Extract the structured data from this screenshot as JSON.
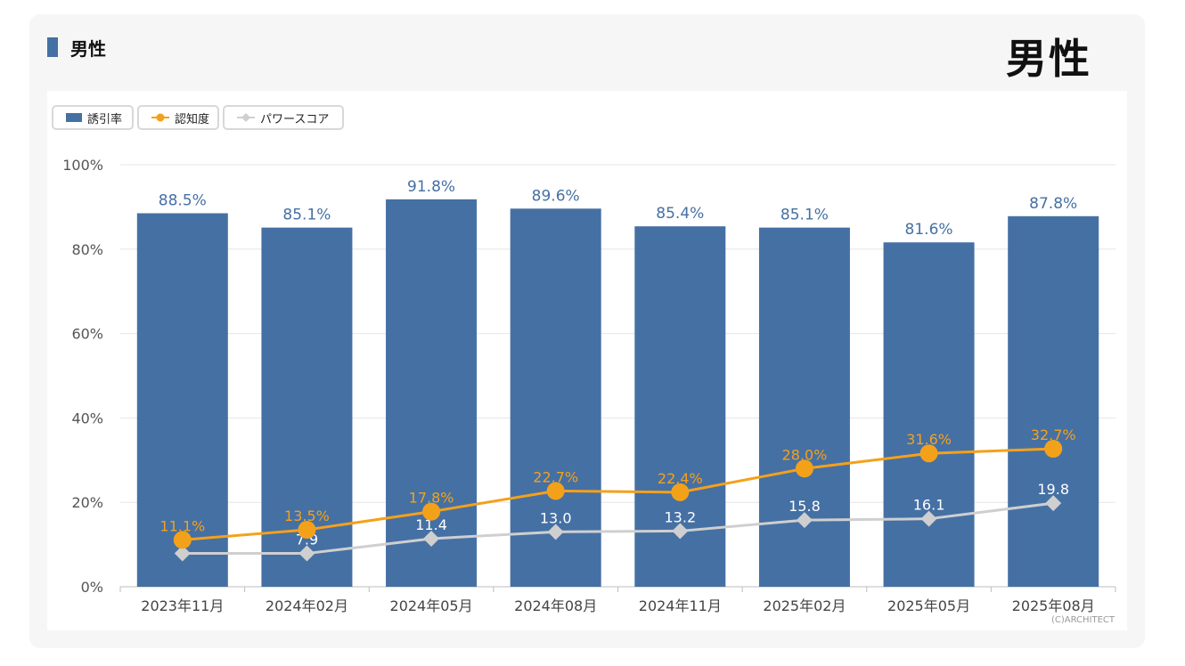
{
  "header": {
    "section_title": "男性",
    "big_title": "男性"
  },
  "legend": [
    {
      "label": "誘引率",
      "icon": "bar-swatch-icon"
    },
    {
      "label": "認知度",
      "icon": "circle-line-icon"
    },
    {
      "label": "パワースコア",
      "icon": "diamond-line-icon"
    }
  ],
  "credit": "(C)ARCHITECT",
  "colors": {
    "bar": "#4570a4",
    "awareness": "#f4a11a",
    "power": "#cfcfcf",
    "bar_label": "#4570a4",
    "awareness_label": "#f4a11a",
    "power_label": "#ffffff"
  },
  "chart_data": {
    "type": "bar",
    "categories": [
      "2023年11月",
      "2024年02月",
      "2024年05月",
      "2024年08月",
      "2024年11月",
      "2025年02月",
      "2025年05月",
      "2025年08月"
    ],
    "series": [
      {
        "name": "誘引率",
        "kind": "bar",
        "values": [
          88.5,
          85.1,
          91.8,
          89.6,
          85.4,
          85.1,
          81.6,
          87.8
        ],
        "labels": [
          "88.5%",
          "85.1%",
          "91.8%",
          "89.6%",
          "85.4%",
          "85.1%",
          "81.6%",
          "87.8%"
        ]
      },
      {
        "name": "認知度",
        "kind": "line",
        "values": [
          11.1,
          13.5,
          17.8,
          22.7,
          22.4,
          28.0,
          31.6,
          32.7
        ],
        "labels": [
          "11.1%",
          "13.5%",
          "17.8%",
          "22.7%",
          "22.4%",
          "28.0%",
          "31.6%",
          "32.7%"
        ]
      },
      {
        "name": "パワースコア",
        "kind": "line",
        "values": [
          7.9,
          7.9,
          11.4,
          13.0,
          13.2,
          15.8,
          16.1,
          19.8
        ],
        "labels": [
          "7.9",
          "7.9",
          "11.4",
          "13.0",
          "13.2",
          "15.8",
          "16.1",
          "19.8"
        ],
        "label_visible": [
          false,
          true,
          true,
          true,
          true,
          true,
          true,
          true
        ]
      }
    ],
    "ylim": [
      0,
      100
    ],
    "yticks": [
      0,
      20,
      40,
      60,
      80,
      100
    ],
    "ytick_labels": [
      "0%",
      "20%",
      "40%",
      "60%",
      "80%",
      "100%"
    ],
    "grid": true,
    "legend_position": "top-left"
  }
}
